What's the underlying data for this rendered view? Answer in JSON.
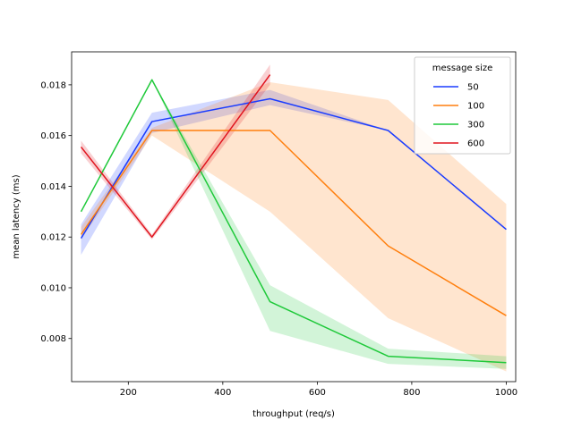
{
  "chart_data": {
    "type": "line",
    "xlabel": "throughput (req/s)",
    "ylabel": "mean latency (ms)",
    "xlim": [
      80,
      1020
    ],
    "ylim": [
      0.0063,
      0.0193
    ],
    "xticks": [
      200,
      400,
      600,
      800,
      1000
    ],
    "yticks": [
      0.008,
      0.01,
      0.012,
      0.014,
      0.016,
      0.018
    ],
    "xtick_labels": [
      "200",
      "400",
      "600",
      "800",
      "1000"
    ],
    "ytick_labels": [
      "0.008",
      "0.010",
      "0.012",
      "0.014",
      "0.016",
      "0.018"
    ],
    "grid": false,
    "legend": {
      "title": "message size",
      "placement": "top-right",
      "entries": [
        "50",
        "100",
        "300",
        "600"
      ]
    },
    "series": [
      {
        "name": "50",
        "color": "#1a3cff",
        "x": [
          100,
          250,
          500,
          750,
          1000
        ],
        "y": [
          0.01195,
          0.01655,
          0.01745,
          0.0162,
          0.0123
        ],
        "ci_low": [
          0.0113,
          0.0161,
          0.0172,
          0.0162,
          0.0123
        ],
        "ci_high": [
          0.0125,
          0.0169,
          0.0178,
          0.0162,
          0.0123
        ]
      },
      {
        "name": "100",
        "color": "#ff7f0e",
        "x": [
          100,
          250,
          500,
          750,
          1000
        ],
        "y": [
          0.0121,
          0.0162,
          0.0162,
          0.01165,
          0.0089
        ],
        "ci_low": [
          0.0119,
          0.016,
          0.013,
          0.0088,
          0.0067
        ],
        "ci_high": [
          0.0124,
          0.0163,
          0.0181,
          0.0174,
          0.0133
        ]
      },
      {
        "name": "300",
        "color": "#1fc93a",
        "x": [
          100,
          250,
          500,
          750,
          1000
        ],
        "y": [
          0.013,
          0.0182,
          0.00945,
          0.0073,
          0.00705
        ],
        "ci_low": [
          0.013,
          0.0182,
          0.0083,
          0.007,
          0.0068
        ],
        "ci_high": [
          0.013,
          0.0182,
          0.0101,
          0.0076,
          0.0073
        ]
      },
      {
        "name": "600",
        "color": "#e0141e",
        "x": [
          100,
          250,
          500
        ],
        "y": [
          0.01555,
          0.012,
          0.0184
        ],
        "ci_low": [
          0.0153,
          0.0119,
          0.018
        ],
        "ci_high": [
          0.0158,
          0.0121,
          0.0188
        ]
      }
    ]
  }
}
